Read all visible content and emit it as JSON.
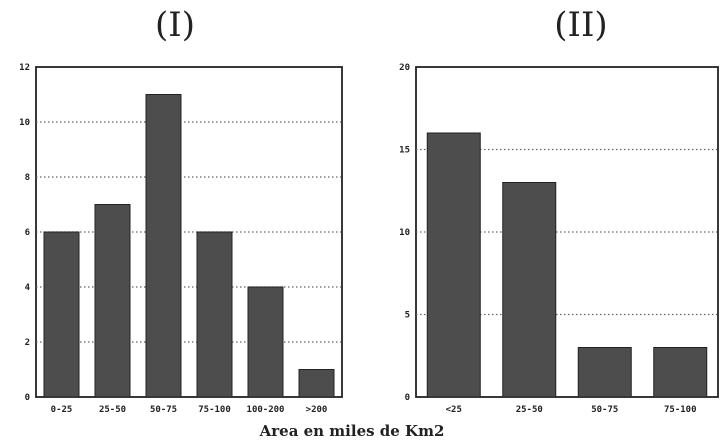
{
  "chart_data": [
    {
      "type": "bar",
      "title": "(I)",
      "categories": [
        "0-25",
        "25-50",
        "50-75",
        "75-100",
        "100-200",
        ">200"
      ],
      "values": [
        6,
        7,
        11,
        6,
        4,
        1
      ],
      "ylim": [
        0,
        12
      ],
      "yticks": [
        "0",
        "2",
        "4",
        "6",
        "8",
        "10",
        "12"
      ],
      "grid": true
    },
    {
      "type": "bar",
      "title": "(II)",
      "categories": [
        "<25",
        "25-50",
        "50-75",
        "75-100"
      ],
      "values": [
        16,
        13,
        3,
        3
      ],
      "ylim": [
        0,
        20
      ],
      "yticks": [
        "0",
        "5",
        "10",
        "15",
        "20"
      ],
      "grid": true
    }
  ],
  "shared_xlabel": "Area en miles de Km2"
}
